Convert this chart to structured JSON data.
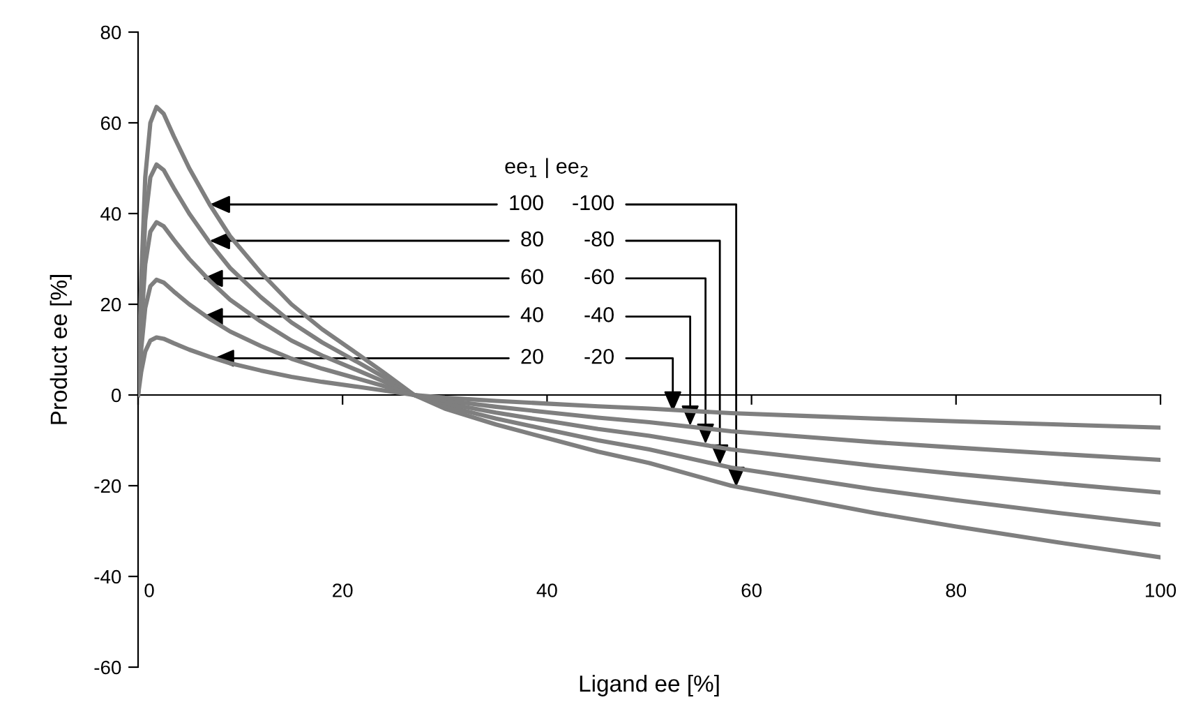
{
  "chart_data": {
    "type": "line",
    "xlabel": "Ligand ee [%]",
    "ylabel": "Product ee [%]",
    "x": [
      0,
      0.3,
      0.7,
      1.2,
      1.8,
      2.5,
      3.5,
      5,
      7,
      9,
      12,
      15,
      18,
      21.5,
      24,
      27,
      30,
      35,
      40,
      45,
      50,
      58,
      65,
      72,
      80,
      90,
      100
    ],
    "series": [
      {
        "color": "#7f7f7f",
        "values": [
          0,
          25,
          48,
          60,
          63.5,
          62,
          57,
          50,
          42,
          35,
          27,
          20,
          14.5,
          9,
          5,
          0,
          -3,
          -6.5,
          -9.5,
          -12.5,
          -15,
          -20,
          -23,
          -26,
          -29,
          -32.5,
          -35.8
        ]
      },
      {
        "color": "#7f7f7f",
        "values": [
          0,
          20,
          38.4,
          48,
          50.8,
          49.6,
          45.6,
          40,
          33.6,
          28,
          21.6,
          16,
          11.6,
          7.2,
          4,
          0,
          -2.4,
          -5.2,
          -7.6,
          -10,
          -12,
          -16,
          -18.4,
          -20.8,
          -23.2,
          -26,
          -28.6
        ]
      },
      {
        "color": "#7f7f7f",
        "values": [
          0,
          15,
          28.8,
          36,
          38.1,
          37.2,
          34.2,
          30,
          25.2,
          21,
          16.2,
          12,
          8.7,
          5.4,
          3,
          0,
          -1.8,
          -3.9,
          -5.7,
          -7.5,
          -9,
          -12,
          -13.8,
          -15.6,
          -17.4,
          -19.5,
          -21.5
        ]
      },
      {
        "color": "#7f7f7f",
        "values": [
          0,
          10,
          19.2,
          24,
          25.4,
          24.8,
          22.8,
          20,
          16.8,
          14,
          10.8,
          8,
          5.8,
          3.6,
          2,
          0,
          -1.2,
          -2.6,
          -3.8,
          -5,
          -6,
          -8,
          -9.2,
          -10.4,
          -11.6,
          -13,
          -14.3
        ]
      },
      {
        "color": "#7f7f7f",
        "values": [
          0,
          5,
          9.6,
          12,
          12.7,
          12.4,
          11.4,
          10,
          8.4,
          7,
          5.4,
          4,
          2.9,
          1.8,
          1,
          0,
          -0.6,
          -1.3,
          -1.9,
          -2.5,
          -3,
          -4,
          -4.6,
          -5.2,
          -5.8,
          -6.5,
          -7.2
        ]
      }
    ],
    "annotations": [
      "ee$_{1}$ | ee$_{2}$",
      {
        "text": "100",
        "x": 7,
        "y": 42
      },
      {
        "text": "-100",
        "x": 58.5,
        "y": -20.3
      },
      {
        "text": "80",
        "x": 7,
        "y": 34
      },
      {
        "text": "-80",
        "x": 56.9,
        "y": -15.4
      },
      {
        "text": "60",
        "x": 6.3,
        "y": 25.7
      },
      {
        "text": "-60",
        "x": 55.5,
        "y": -10.8
      },
      {
        "text": "40",
        "x": 6.3,
        "y": 17.3
      },
      {
        "text": "-40",
        "x": 54,
        "y": -6.8
      },
      {
        "text": "20",
        "x": 7.4,
        "y": 8.1
      },
      {
        "text": "-20",
        "x": 52.3,
        "y": -3.7
      }
    ],
    "xlim": [
      0,
      100
    ],
    "xticks": [
      0,
      20,
      40,
      60,
      80,
      100
    ],
    "ylim": [
      -60,
      80
    ],
    "yticks": [
      -60,
      -40,
      -20,
      0,
      20,
      40,
      60,
      80
    ],
    "legend": false,
    "marker": "none",
    "line_style": "solid"
  }
}
